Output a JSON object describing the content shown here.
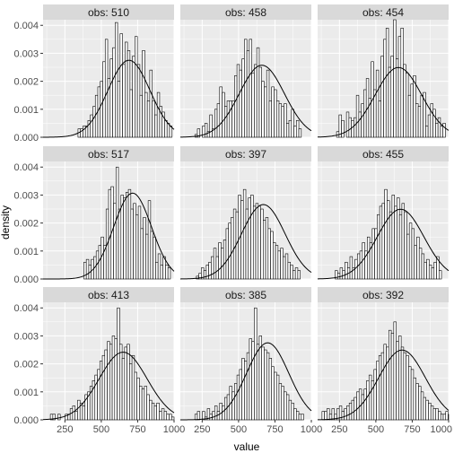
{
  "chart_data": {
    "type": "bar",
    "layout": "facet-grid",
    "xlabel": "value",
    "ylabel": "density",
    "xlim": [
      100,
      1000
    ],
    "ylim": [
      0,
      0.0042
    ],
    "x_ticks": [
      250,
      500,
      750,
      1000
    ],
    "x_tick_labels": [
      "250",
      "500",
      "750",
      "1000"
    ],
    "y_ticks": [
      0,
      0.001,
      0.002,
      0.003,
      0.004
    ],
    "y_tick_labels": [
      "0.000",
      "0.001",
      "0.002",
      "0.003",
      "0.004"
    ],
    "bin_width": 17,
    "grid": true,
    "colors": {
      "panel_background": "#ebebeb",
      "grid_major": "#ffffff",
      "strip_background": "#d9d9d9",
      "bar_fill": "#ffffff",
      "bar_outline": "#000000",
      "curve": "#000000"
    },
    "panels": [
      {
        "label": "obs: 510",
        "mean": 690,
        "sd": 145,
        "histogram": {
          "x_start": 340,
          "density": [
            0.0003,
            0.0003,
            0.0004,
            0.0004,
            0.0006,
            0.0008,
            0.0011,
            0.0015,
            0.0018,
            0.002,
            0.0027,
            0.0035,
            0.0021,
            0.0028,
            0.0032,
            0.0041,
            0.002,
            0.0037,
            0.0026,
            0.0034,
            0.0031,
            0.0017,
            0.0029,
            0.0036,
            0.0026,
            0.0015,
            0.0031,
            0.0016,
            0.0013,
            0.0024,
            0.0013,
            0.0008,
            0.0016,
            0.0011,
            0.0009,
            0.0006,
            0.0005,
            0.0004
          ]
        }
      },
      {
        "label": "obs: 458",
        "mean": 660,
        "sd": 155,
        "histogram": {
          "x_start": 200,
          "density": [
            0.0001,
            0.0003,
            0.0,
            0.0004,
            0.0005,
            0.0002,
            0.0008,
            0.0003,
            0.001,
            0.0012,
            0.0018,
            0.0016,
            0.0011,
            0.0013,
            0.0013,
            0.0013,
            0.0022,
            0.0026,
            0.0024,
            0.0028,
            0.0035,
            0.0031,
            0.0035,
            0.0023,
            0.0026,
            0.0032,
            0.0025,
            0.002,
            0.0018,
            0.0024,
            0.0013,
            0.0018,
            0.0017,
            0.0013,
            0.0012,
            0.0011,
            0.0012,
            0.0005,
            0.0006,
            0.001,
            0.0004,
            0.0006,
            0.0003
          ]
        }
      },
      {
        "label": "obs: 454",
        "mean": 655,
        "sd": 160,
        "histogram": {
          "x_start": 230,
          "density": [
            0.0002,
            0.0008,
            0.0006,
            0.0,
            0.0009,
            0.0007,
            0.0006,
            0.0007,
            0.0015,
            0.0009,
            0.0012,
            0.0017,
            0.0021,
            0.0014,
            0.0027,
            0.0017,
            0.0024,
            0.0013,
            0.0029,
            0.0035,
            0.0039,
            0.0025,
            0.0029,
            0.0042,
            0.0028,
            0.0036,
            0.0039,
            0.0026,
            0.0023,
            0.0015,
            0.0019,
            0.0022,
            0.0012,
            0.0011,
            0.0015,
            0.0016,
            0.0004,
            0.0008,
            0.0012,
            0.001,
            0.0005,
            0.0007,
            0.0004,
            0.0005
          ]
        }
      },
      {
        "label": "obs: 517",
        "mean": 715,
        "sd": 130,
        "histogram": {
          "x_start": 380,
          "density": [
            0.0006,
            0.0007,
            0.0005,
            0.0007,
            0.0008,
            0.001,
            0.0012,
            0.0015,
            0.0012,
            0.0025,
            0.0032,
            0.0033,
            0.0027,
            0.004,
            0.0025,
            0.003,
            0.0029,
            0.0031,
            0.0032,
            0.0025,
            0.0027,
            0.0023,
            0.0026,
            0.0018,
            0.0022,
            0.0016,
            0.0028,
            0.0017,
            0.0015,
            0.0006,
            0.0009,
            0.0005,
            0.0008,
            0.0005,
            0.0004
          ]
        }
      },
      {
        "label": "obs: 397",
        "mean": 670,
        "sd": 150,
        "histogram": {
          "x_start": 210,
          "density": [
            0.0001,
            0.0002,
            0.0004,
            0.0003,
            0.0005,
            0.0006,
            0.0008,
            0.0011,
            0.0008,
            0.0013,
            0.0011,
            0.0014,
            0.0018,
            0.002,
            0.0022,
            0.0025,
            0.0024,
            0.003,
            0.0028,
            0.0032,
            0.0025,
            0.0029,
            0.003,
            0.0026,
            0.0027,
            0.0026,
            0.0025,
            0.0021,
            0.0022,
            0.0018,
            0.0017,
            0.0013,
            0.0012,
            0.001,
            0.0011,
            0.0008,
            0.0009,
            0.0006,
            0.0005,
            0.0003,
            0.0004,
            0.0003
          ]
        }
      },
      {
        "label": "obs: 455",
        "mean": 670,
        "sd": 160,
        "histogram": {
          "x_start": 220,
          "density": [
            0.0003,
            0.0002,
            0.0004,
            0.0003,
            0.0006,
            0.0004,
            0.0008,
            0.0004,
            0.0007,
            0.0009,
            0.001,
            0.0013,
            0.001,
            0.0015,
            0.0013,
            0.0018,
            0.0018,
            0.0023,
            0.0026,
            0.0027,
            0.0032,
            0.0028,
            0.0024,
            0.003,
            0.0026,
            0.0029,
            0.0023,
            0.0027,
            0.0024,
            0.0016,
            0.002,
            0.0018,
            0.0012,
            0.0015,
            0.0011,
            0.0009,
            0.0006,
            0.0007,
            0.0005,
            0.0004,
            0.0006,
            0.0008,
            0.0003
          ]
        }
      },
      {
        "label": "obs: 413",
        "mean": 650,
        "sd": 165,
        "histogram": {
          "x_start": 150,
          "density": [
            0.0002,
            0.0002,
            0.0,
            0.0002,
            0.0,
            0.0,
            0.0002,
            0.0002,
            0.0004,
            0.0005,
            0.0003,
            0.0007,
            0.0006,
            0.0005,
            0.0009,
            0.001,
            0.0012,
            0.0014,
            0.0016,
            0.0018,
            0.0021,
            0.0023,
            0.0025,
            0.0028,
            0.0027,
            0.003,
            0.0029,
            0.004,
            0.0027,
            0.0022,
            0.0026,
            0.0027,
            0.002,
            0.0023,
            0.0017,
            0.0015,
            0.0012,
            0.0011,
            0.0012,
            0.0009,
            0.0007,
            0.0006,
            0.0005,
            0.0006,
            0.0003,
            0.0004,
            0.0003,
            0.0002,
            0.0002,
            0.0001,
            0.0002,
            0.0001,
            0.0001
          ]
        }
      },
      {
        "label": "obs: 385",
        "mean": 700,
        "sd": 145,
        "histogram": {
          "x_start": 200,
          "density": [
            0.0002,
            0.0003,
            0.0,
            0.0003,
            0.0001,
            0.0004,
            0.0002,
            0.0003,
            0.0005,
            0.0003,
            0.0006,
            0.0005,
            0.0008,
            0.0009,
            0.0012,
            0.001,
            0.0013,
            0.0016,
            0.0018,
            0.0022,
            0.0021,
            0.0024,
            0.0029,
            0.0028,
            0.004,
            0.0027,
            0.003,
            0.0026,
            0.0025,
            0.0024,
            0.0022,
            0.0019,
            0.0017,
            0.0016,
            0.0013,
            0.0012,
            0.001,
            0.0009,
            0.0007,
            0.0006,
            0.0004,
            0.0003,
            0.0002,
            0.0002
          ]
        }
      },
      {
        "label": "obs: 392",
        "mean": 680,
        "sd": 160,
        "histogram": {
          "x_start": 130,
          "density": [
            0.0003,
            0.0003,
            0.0004,
            0.0002,
            0.0004,
            0.0002,
            0.0004,
            0.0005,
            0.0003,
            0.0004,
            0.0005,
            0.0006,
            0.0007,
            0.0008,
            0.001,
            0.0011,
            0.0009,
            0.0011,
            0.0014,
            0.0016,
            0.0014,
            0.0018,
            0.0021,
            0.0023,
            0.0024,
            0.0027,
            0.0026,
            0.0032,
            0.0031,
            0.0035,
            0.0028,
            0.003,
            0.0026,
            0.0024,
            0.0023,
            0.0019,
            0.0018,
            0.0015,
            0.0013,
            0.0012,
            0.001,
            0.0008,
            0.0007,
            0.0006,
            0.0005,
            0.0004,
            0.0004,
            0.0003,
            0.0002,
            0.0002,
            0.0003,
            0.0002
          ]
        }
      }
    ]
  }
}
